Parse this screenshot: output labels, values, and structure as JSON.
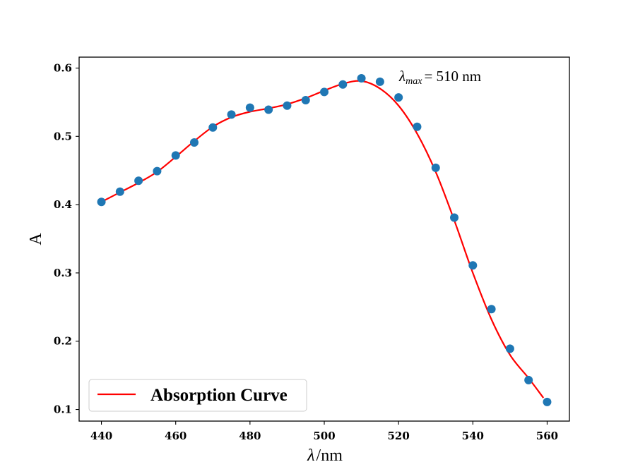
{
  "chart_data": {
    "type": "scatter",
    "title": "",
    "xlabel_symbol": "λ",
    "xlabel_unit": "/nm",
    "ylabel": "A",
    "xlim": [
      434,
      566
    ],
    "ylim": [
      0.083,
      0.616
    ],
    "xticks": [
      440,
      460,
      480,
      500,
      520,
      540,
      560
    ],
    "yticks": [
      0.1,
      0.2,
      0.3,
      0.4,
      0.5,
      0.6
    ],
    "grid": false,
    "legend_position": "lower-left",
    "annotation": {
      "symbol": "λ",
      "subscript": "max",
      "text": "= 510 nm",
      "x": 520,
      "y": 0.583
    },
    "series": [
      {
        "kind": "points",
        "color": "#1f77b4",
        "x": [
          440,
          445,
          450,
          455,
          460,
          465,
          470,
          475,
          480,
          485,
          490,
          495,
          500,
          505,
          510,
          515,
          520,
          525,
          530,
          535,
          540,
          545,
          550,
          555,
          560
        ],
        "y": [
          0.404,
          0.419,
          0.435,
          0.449,
          0.472,
          0.491,
          0.513,
          0.532,
          0.542,
          0.539,
          0.545,
          0.553,
          0.565,
          0.576,
          0.585,
          0.58,
          0.557,
          0.514,
          0.454,
          0.381,
          0.311,
          0.247,
          0.189,
          0.143,
          0.111
        ]
      },
      {
        "kind": "line",
        "name": "Absorption Curve",
        "color": "#ff0000",
        "x": [
          440,
          445,
          450,
          455,
          460,
          465,
          470,
          475,
          480,
          485,
          490,
          495,
          500,
          505,
          510,
          515,
          520,
          525,
          530,
          535,
          540,
          545,
          550,
          555,
          559
        ],
        "y": [
          0.404,
          0.418,
          0.432,
          0.448,
          0.47,
          0.493,
          0.514,
          0.528,
          0.536,
          0.541,
          0.547,
          0.556,
          0.567,
          0.577,
          0.581,
          0.57,
          0.545,
          0.504,
          0.448,
          0.377,
          0.3,
          0.232,
          0.18,
          0.146,
          0.117
        ]
      }
    ]
  }
}
